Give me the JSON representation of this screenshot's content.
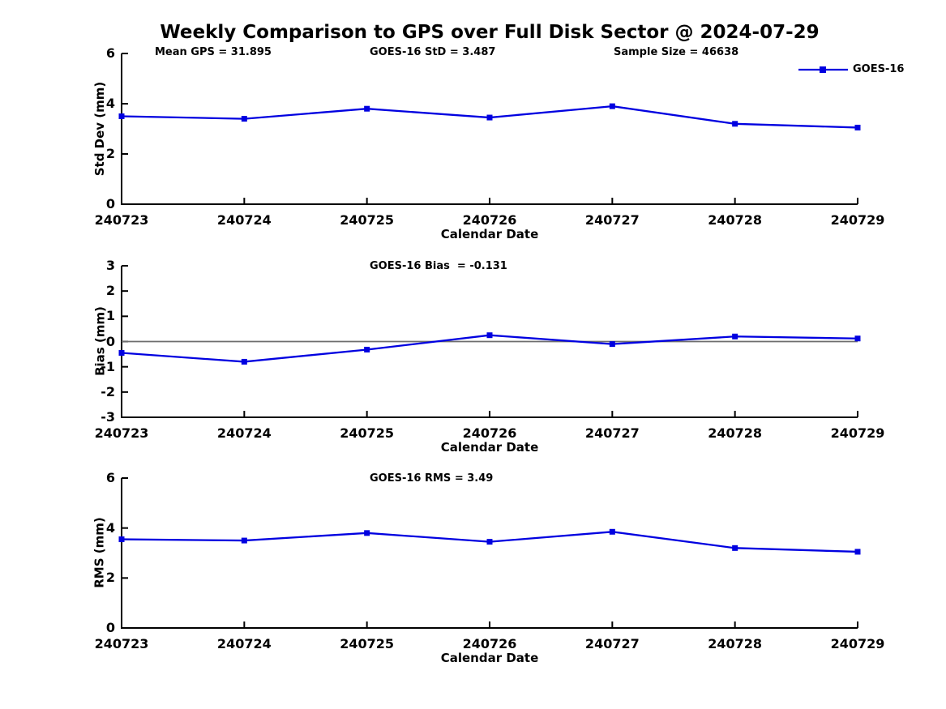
{
  "title": "Weekly Comparison to GPS over Full Disk Sector @ 2024-07-29",
  "legend": {
    "label": "GOES-16"
  },
  "colors": {
    "series": "#0000E0",
    "zero_line": "#6E6E6E",
    "axis": "#000000",
    "text": "#000000"
  },
  "x_axis": {
    "label": "Calendar Date",
    "categories": [
      "240723",
      "240724",
      "240725",
      "240726",
      "240727",
      "240728",
      "240729"
    ]
  },
  "chart_data": [
    {
      "type": "line",
      "name": "std-dev",
      "ylabel": "Std Dev (mm)",
      "xlabel": "Calendar Date",
      "ylim": [
        0,
        6
      ],
      "yticks": [
        0,
        2,
        4,
        6
      ],
      "grid": false,
      "legend_position": "top-right-outside",
      "categories": [
        "240723",
        "240724",
        "240725",
        "240726",
        "240727",
        "240728",
        "240729"
      ],
      "series": [
        {
          "name": "GOES-16",
          "marker": "square",
          "values": [
            3.5,
            3.4,
            3.8,
            3.45,
            3.9,
            3.2,
            3.05
          ]
        }
      ],
      "annotations": [
        "Mean GPS = 31.895",
        "GOES-16 StD = 3.487",
        "Sample Size = 46638"
      ]
    },
    {
      "type": "line",
      "name": "bias",
      "ylabel": "Bias (mm)",
      "xlabel": "Calendar Date",
      "ylim": [
        -3,
        3
      ],
      "yticks": [
        -3,
        -2,
        -1,
        0,
        1,
        2,
        3
      ],
      "zero_line": true,
      "grid": false,
      "categories": [
        "240723",
        "240724",
        "240725",
        "240726",
        "240727",
        "240728",
        "240729"
      ],
      "series": [
        {
          "name": "GOES-16",
          "marker": "square",
          "values": [
            -0.45,
            -0.8,
            -0.32,
            0.25,
            -0.1,
            0.2,
            0.12
          ]
        }
      ],
      "annotations": [
        "GOES-16 Bias  = -0.131"
      ]
    },
    {
      "type": "line",
      "name": "rms",
      "ylabel": "RMS (mm)",
      "xlabel": "Calendar Date",
      "ylim": [
        0,
        6
      ],
      "yticks": [
        0,
        2,
        4,
        6
      ],
      "grid": false,
      "categories": [
        "240723",
        "240724",
        "240725",
        "240726",
        "240727",
        "240728",
        "240729"
      ],
      "series": [
        {
          "name": "GOES-16",
          "marker": "square",
          "values": [
            3.55,
            3.5,
            3.8,
            3.45,
            3.85,
            3.2,
            3.05
          ]
        }
      ],
      "annotations": [
        "GOES-16 RMS = 3.49"
      ]
    }
  ]
}
